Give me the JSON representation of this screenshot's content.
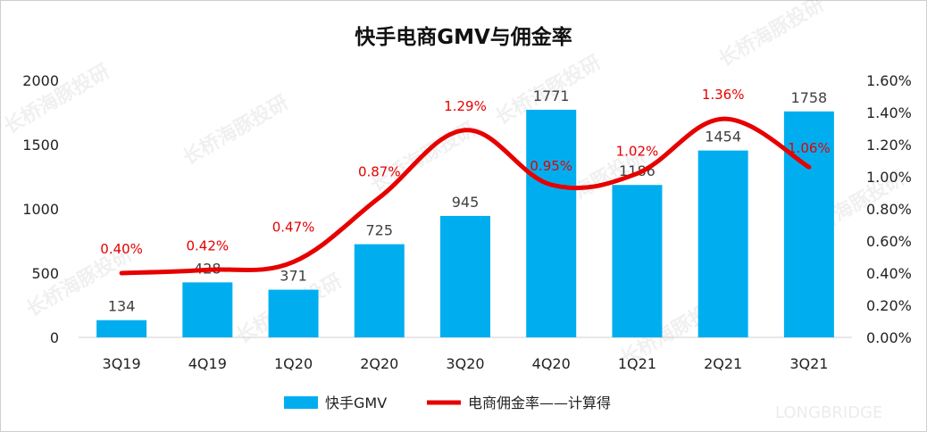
{
  "chart_data": {
    "type": "bar+line",
    "title": "快手电商GMV与佣金率",
    "categories": [
      "3Q19",
      "4Q19",
      "1Q20",
      "2Q20",
      "3Q20",
      "4Q20",
      "1Q21",
      "2Q21",
      "3Q21"
    ],
    "series": [
      {
        "name": "快手GMV",
        "type": "bar",
        "axis": "left",
        "color": "#00aeef",
        "values": [
          134,
          428,
          371,
          725,
          945,
          1771,
          1186,
          1454,
          1758
        ],
        "labels": [
          "134",
          "428",
          "371",
          "725",
          "945",
          "1771",
          "1186",
          "1454",
          "1758"
        ]
      },
      {
        "name": "电商佣金率——计算得",
        "type": "line",
        "axis": "right",
        "color": "#e60000",
        "values": [
          0.4,
          0.42,
          0.47,
          0.87,
          1.29,
          0.95,
          1.02,
          1.36,
          1.06
        ],
        "labels": [
          "0.40%",
          "0.42%",
          "0.47%",
          "0.87%",
          "1.29%",
          "0.95%",
          "1.02%",
          "1.36%",
          "1.06%"
        ]
      }
    ],
    "y_left": {
      "range": [
        0,
        2000
      ],
      "ticks": [
        "0",
        "500",
        "1000",
        "1500",
        "2000"
      ]
    },
    "y_right": {
      "range": [
        0,
        1.6
      ],
      "ticks": [
        "0.00%",
        "0.20%",
        "0.40%",
        "0.60%",
        "0.80%",
        "1.00%",
        "1.20%",
        "1.40%",
        "1.60%"
      ]
    },
    "legend_position": "bottom",
    "grid": false
  },
  "watermark": {
    "text": "长桥海豚投研",
    "brand": "LONGBRIDGE"
  }
}
